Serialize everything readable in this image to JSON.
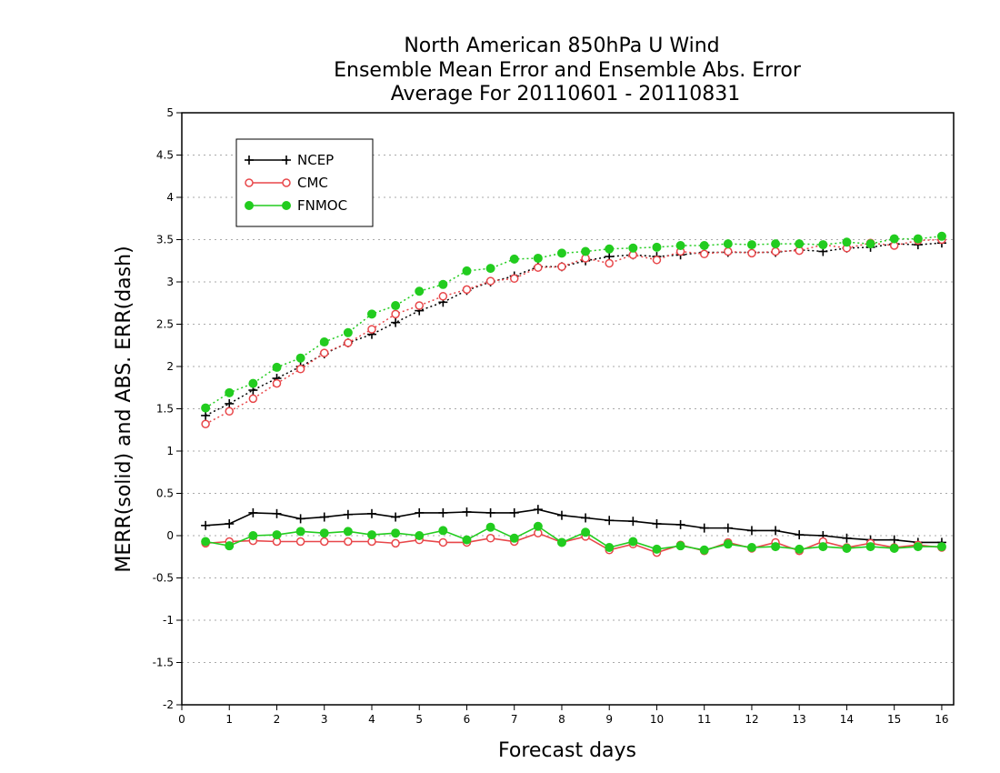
{
  "chart_data": {
    "type": "line",
    "title_lines": [
      "North American 850hPa U Wind",
      "Ensemble Mean Error and Ensemble Abs. Error",
      "Average For 20110601 - 20110831"
    ],
    "xlabel": "Forecast days",
    "ylabel": "MERR(solid) and ABS. ERR(dash)",
    "xlim": [
      0,
      16.25
    ],
    "ylim": [
      -2,
      5
    ],
    "x_ticks": [
      "0",
      "1",
      "2",
      "3",
      "4",
      "5",
      "6",
      "7",
      "8",
      "9",
      "10",
      "11",
      "12",
      "13",
      "14",
      "15",
      "16"
    ],
    "y_ticks": [
      "-2",
      "-1.5",
      "-1",
      "-0.5",
      "0",
      "0.5",
      "1",
      "1.5",
      "2",
      "2.5",
      "3",
      "3.5",
      "4",
      "4.5",
      "5"
    ],
    "grid": "horizontal dotted",
    "legend_position": "top-left",
    "x": [
      0.5,
      1,
      1.5,
      2,
      2.5,
      3,
      3.5,
      4,
      4.5,
      5,
      5.5,
      6,
      6.5,
      7,
      7.5,
      8,
      8.5,
      9,
      9.5,
      10,
      10.5,
      11,
      11.5,
      12,
      12.5,
      13,
      13.5,
      14,
      14.5,
      15,
      15.5,
      16
    ],
    "series": [
      {
        "name": "NCEP",
        "color": "#000000",
        "marker": "plus",
        "merr": [
          0.12,
          0.14,
          0.27,
          0.26,
          0.2,
          0.22,
          0.25,
          0.26,
          0.22,
          0.27,
          0.27,
          0.28,
          0.27,
          0.27,
          0.31,
          0.24,
          0.21,
          0.18,
          0.17,
          0.14,
          0.13,
          0.09,
          0.09,
          0.06,
          0.06,
          0.01,
          0.0,
          -0.03,
          -0.05,
          -0.05,
          -0.08,
          -0.08
        ],
        "abs_err": [
          1.42,
          1.56,
          1.72,
          1.86,
          2.0,
          2.15,
          2.28,
          2.38,
          2.52,
          2.66,
          2.76,
          2.9,
          3.0,
          3.07,
          3.18,
          3.18,
          3.25,
          3.3,
          3.32,
          3.3,
          3.32,
          3.35,
          3.35,
          3.35,
          3.35,
          3.38,
          3.36,
          3.4,
          3.41,
          3.45,
          3.44,
          3.46
        ]
      },
      {
        "name": "CMC",
        "color": "#e8474a",
        "marker": "open-circle",
        "merr": [
          -0.09,
          -0.07,
          -0.06,
          -0.07,
          -0.07,
          -0.07,
          -0.07,
          -0.07,
          -0.09,
          -0.05,
          -0.08,
          -0.08,
          -0.03,
          -0.07,
          0.03,
          -0.08,
          -0.01,
          -0.17,
          -0.1,
          -0.2,
          -0.11,
          -0.18,
          -0.08,
          -0.15,
          -0.08,
          -0.18,
          -0.07,
          -0.14,
          -0.09,
          -0.14,
          -0.11,
          -0.14
        ],
        "abs_err": [
          1.32,
          1.47,
          1.62,
          1.8,
          1.97,
          2.16,
          2.28,
          2.44,
          2.62,
          2.72,
          2.83,
          2.91,
          3.01,
          3.04,
          3.17,
          3.18,
          3.28,
          3.22,
          3.32,
          3.26,
          3.36,
          3.33,
          3.36,
          3.34,
          3.36,
          3.37,
          3.44,
          3.4,
          3.46,
          3.43,
          3.49,
          3.5
        ]
      },
      {
        "name": "FNMOC",
        "color": "#22cc1f",
        "marker": "filled-circle",
        "merr": [
          -0.07,
          -0.12,
          0.0,
          0.01,
          0.05,
          0.03,
          0.05,
          0.01,
          0.03,
          0.0,
          0.06,
          -0.05,
          0.1,
          -0.03,
          0.11,
          -0.08,
          0.04,
          -0.14,
          -0.07,
          -0.16,
          -0.12,
          -0.17,
          -0.1,
          -0.14,
          -0.13,
          -0.16,
          -0.13,
          -0.15,
          -0.13,
          -0.15,
          -0.13,
          -0.13
        ],
        "abs_err": [
          1.51,
          1.69,
          1.8,
          1.99,
          2.1,
          2.29,
          2.4,
          2.62,
          2.72,
          2.89,
          2.97,
          3.13,
          3.16,
          3.27,
          3.28,
          3.34,
          3.36,
          3.39,
          3.4,
          3.41,
          3.43,
          3.43,
          3.45,
          3.44,
          3.45,
          3.45,
          3.44,
          3.47,
          3.45,
          3.51,
          3.51,
          3.54
        ]
      }
    ]
  }
}
